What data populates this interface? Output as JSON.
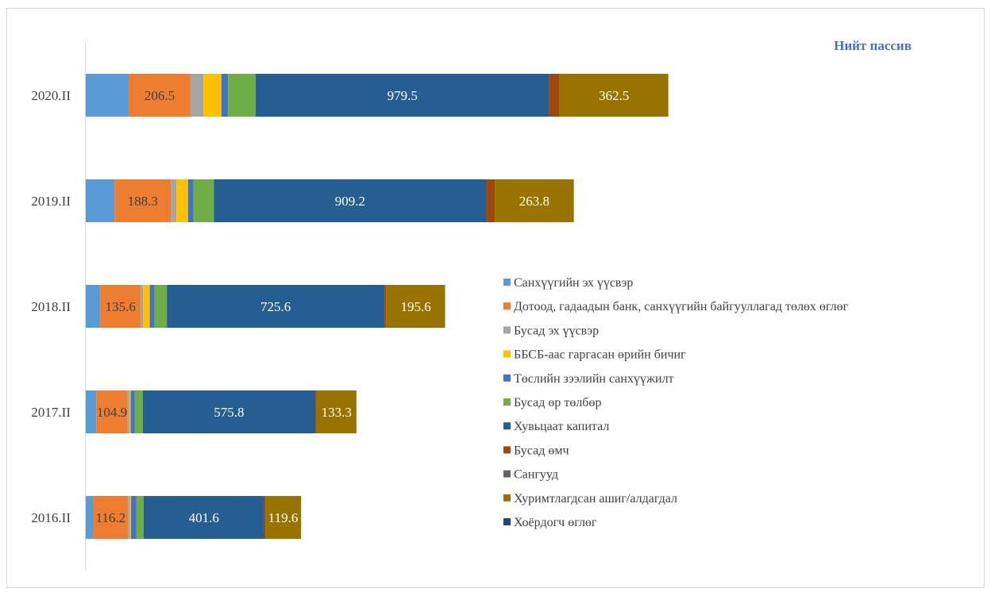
{
  "chart_data": {
    "type": "bar",
    "orientation": "horizontal",
    "stacked": true,
    "title": "Нийт пассив",
    "legend_position": "right",
    "categories": [
      "2020.II",
      "2019.II",
      "2018.II",
      "2017.II",
      "2016.II"
    ],
    "series": [
      {
        "name": "Санхүүгийн эх үүсвэр",
        "color": "#5b9bd5",
        "values": [
          143,
          96,
          48,
          35,
          25
        ]
      },
      {
        "name": "Дотоод, гадаадын банк, санхүүгийн байгууллагад төлөх өглөг",
        "color": "#ed7d31",
        "values": [
          206.5,
          188.3,
          135.6,
          104.9,
          116.2
        ]
      },
      {
        "name": "Бусад эх үүсвэр",
        "color": "#a5a5a5",
        "values": [
          43,
          18,
          8,
          6,
          6
        ]
      },
      {
        "name": "ББСБ-аас гаргасан өрийн бичиг",
        "color": "#ffc000",
        "values": [
          60,
          39,
          22,
          4,
          4
        ]
      },
      {
        "name": "Төслийн зээлийн санхүүжилт",
        "color": "#4472c4",
        "values": [
          22,
          18,
          16,
          14,
          18
        ]
      },
      {
        "name": "Бусад өр төлбөр",
        "color": "#70ad47",
        "values": [
          92,
          68,
          41,
          26,
          24
        ]
      },
      {
        "name": "Хувьцаат капитал",
        "color": "#255e91",
        "values": [
          979.5,
          909.2,
          725.6,
          575.8,
          401.6
        ]
      },
      {
        "name": "Бусад өмч",
        "color": "#9e480e",
        "values": [
          35,
          28,
          7,
          4,
          4
        ]
      },
      {
        "name": "Сангууд",
        "color": "#636363",
        "values": [
          0,
          0,
          0,
          0,
          0
        ]
      },
      {
        "name": "Хуримтлагдсан ашиг/алдагдал",
        "color": "#997300",
        "values": [
          362.5,
          263.8,
          195.6,
          133.3,
          119.6
        ]
      },
      {
        "name": "Хоёрдогч өглөг",
        "color": "#264478",
        "values": [
          0,
          0,
          0,
          0,
          0
        ]
      }
    ],
    "data_labels": [
      {
        "series_index": 1,
        "values": [
          "206.5",
          "188.3",
          "135.6",
          "104.9",
          "116.2"
        ]
      },
      {
        "series_index": 6,
        "values": [
          "979.5",
          "909.2",
          "725.6",
          "575.8",
          "401.6"
        ]
      },
      {
        "series_index": 9,
        "values": [
          "362.5",
          "263.8",
          "195.6",
          "133.3",
          "119.6"
        ]
      }
    ]
  }
}
